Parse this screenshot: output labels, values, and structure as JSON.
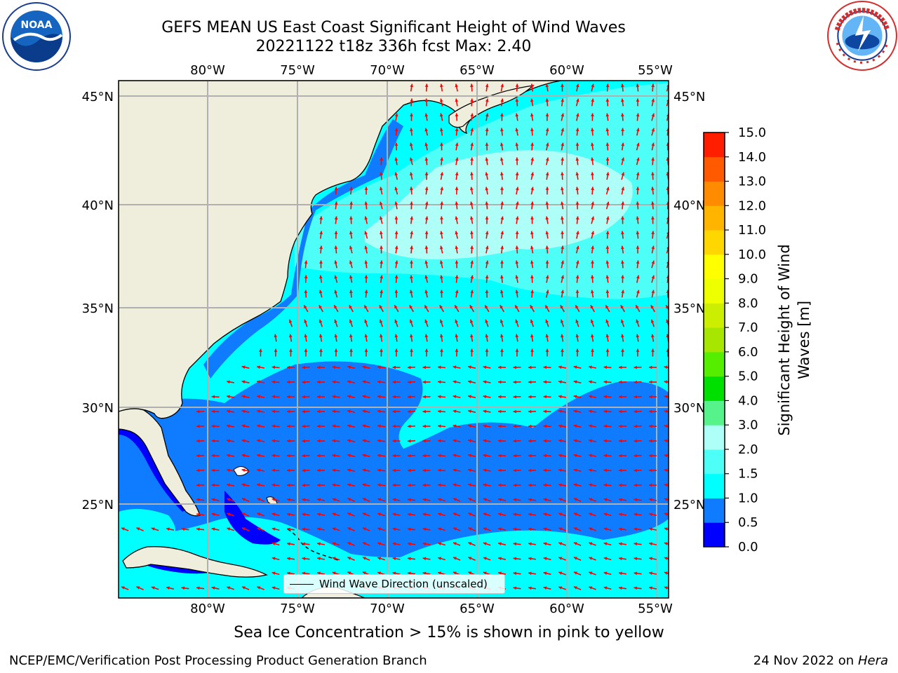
{
  "title_line1": "GEFS MEAN US East Coast Significant Height of Wind Waves",
  "title_line2": "20221122 t18z 336h fcst   Max: 2.40",
  "map": {
    "lon_ticks": [
      "80°W",
      "75°W",
      "70°W",
      "65°W",
      "60°W",
      "55°W"
    ],
    "lat_ticks": [
      "45°N",
      "40°N",
      "35°N",
      "30°N",
      "25°N"
    ],
    "lon_range": [
      -85,
      -54.5
    ],
    "lat_range": [
      20.5,
      45.8
    ],
    "land_color": "#efeddc",
    "arrow_color": "#ff0000",
    "grid_color": "#b0b0b0"
  },
  "legend": {
    "label": "Wind Wave Direction (unscaled)"
  },
  "colorbar": {
    "label": "Significant Height of Wind Waves [m]",
    "ticks": [
      "0.0",
      "0.5",
      "1.0",
      "1.5",
      "2.0",
      "3.0",
      "4.0",
      "5.0",
      "6.0",
      "7.0",
      "8.0",
      "9.0",
      "10.0",
      "11.0",
      "12.0",
      "13.0",
      "14.0",
      "15.0"
    ],
    "colors": [
      "#0000ff",
      "#0f7bff",
      "#00ffff",
      "#4dfff6",
      "#aefff8",
      "#55f38a",
      "#00e000",
      "#55ee00",
      "#a6e600",
      "#ccee00",
      "#eeff00",
      "#ffff00",
      "#ffd700",
      "#ffb400",
      "#ff8c00",
      "#ff5a00",
      "#ff1e00"
    ]
  },
  "ice_note": "Sea Ice Concentration > 15% is shown in pink to yellow",
  "credit": "NCEP/EMC/Verification Post Processing Product Generation Branch",
  "date": "24 Nov 2022 on",
  "host": "Hera",
  "logos": {
    "left": "NOAA",
    "right": "NATIONAL WEATHER SERVICE"
  }
}
